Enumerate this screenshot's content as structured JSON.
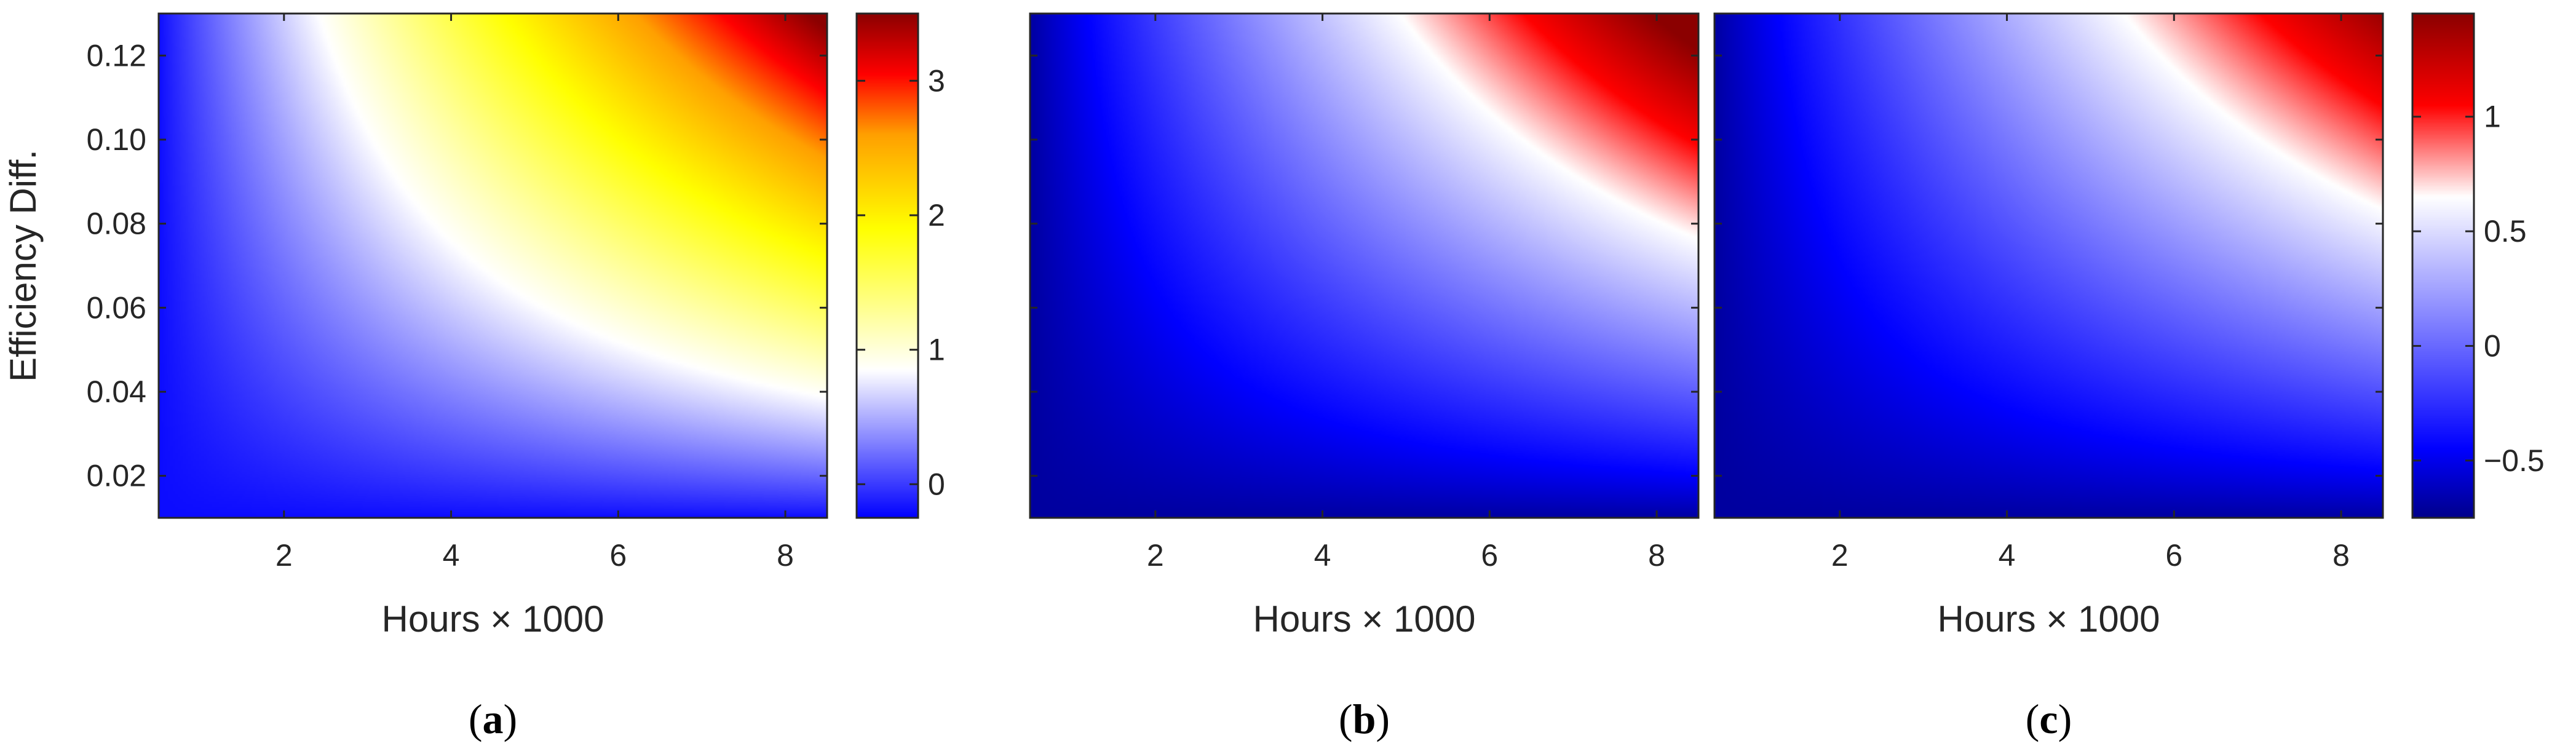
{
  "chart_data": [
    {
      "type": "heatmap",
      "panel_label": "a",
      "xlabel": "Hours × 1000",
      "ylabel": "Efficiency Diff.",
      "xlim": [
        0.5,
        8.5
      ],
      "ylim": [
        0.01,
        0.13
      ],
      "xticks": [
        2,
        4,
        6,
        8
      ],
      "xtick_labels": [
        "2",
        "4",
        "6",
        "8"
      ],
      "yticks": [
        0.02,
        0.04,
        0.06,
        0.08,
        0.1,
        0.12
      ],
      "ytick_labels": [
        "0.02",
        "0.04",
        "0.06",
        "0.08",
        "0.10",
        "0.12"
      ],
      "value_model": "v = -0.2 + k * ((h - 0.5) / 8) ^ 0.9 * ((e - 0.01) / 0.12) ^ 0.9, clipped to clim",
      "k": 3.8,
      "colorbar": {
        "clim": [
          -0.25,
          3.5
        ],
        "ticks": [
          0,
          1,
          2,
          3
        ],
        "tick_labels": [
          "0",
          "1",
          "2",
          "3"
        ],
        "colormap": [
          [
            -0.25,
            "#0000ff"
          ],
          [
            0.85,
            "#ffffff"
          ],
          [
            1.9,
            "#ffff00"
          ],
          [
            2.6,
            "#ffa000"
          ],
          [
            3.05,
            "#ff0000"
          ],
          [
            3.5,
            "#8b0000"
          ]
        ]
      }
    },
    {
      "type": "heatmap",
      "panel_label": "b",
      "xlabel": "Hours × 1000",
      "ylabel": "",
      "xlim": [
        0.5,
        8.5
      ],
      "ylim": [
        0.01,
        0.13
      ],
      "xticks": [
        2,
        4,
        6,
        8
      ],
      "xtick_labels": [
        "2",
        "4",
        "6",
        "8"
      ],
      "value_model": "v = -0.7 + k * ((h - 0.5) / 8) ^ 0.9 * ((e - 0.01) / 0.12) ^ 0.9, clipped to clim",
      "k": 2.3,
      "colorbar": "shared with panel c"
    },
    {
      "type": "heatmap",
      "panel_label": "c",
      "xlabel": "Hours × 1000",
      "ylabel": "",
      "xlim": [
        0.5,
        8.5
      ],
      "ylim": [
        0.01,
        0.13
      ],
      "xticks": [
        2,
        4,
        6,
        8
      ],
      "xtick_labels": [
        "2",
        "4",
        "6",
        "8"
      ],
      "value_model": "v = -0.7 + k * ((h - 0.5) / 8) ^ 0.9 * ((e - 0.01) / 0.12) ^ 0.9, clipped to clim",
      "k": 2.1,
      "colorbar": {
        "clim": [
          -0.75,
          1.45
        ],
        "ticks": [
          -0.5,
          0,
          0.5,
          1
        ],
        "tick_labels": [
          "−0.5",
          "0",
          "0.5",
          "1"
        ],
        "colormap": [
          [
            -0.75,
            "#00008b"
          ],
          [
            -0.45,
            "#0000ff"
          ],
          [
            0.65,
            "#ffffff"
          ],
          [
            1.05,
            "#ff0000"
          ],
          [
            1.45,
            "#8b0000"
          ]
        ]
      }
    }
  ]
}
